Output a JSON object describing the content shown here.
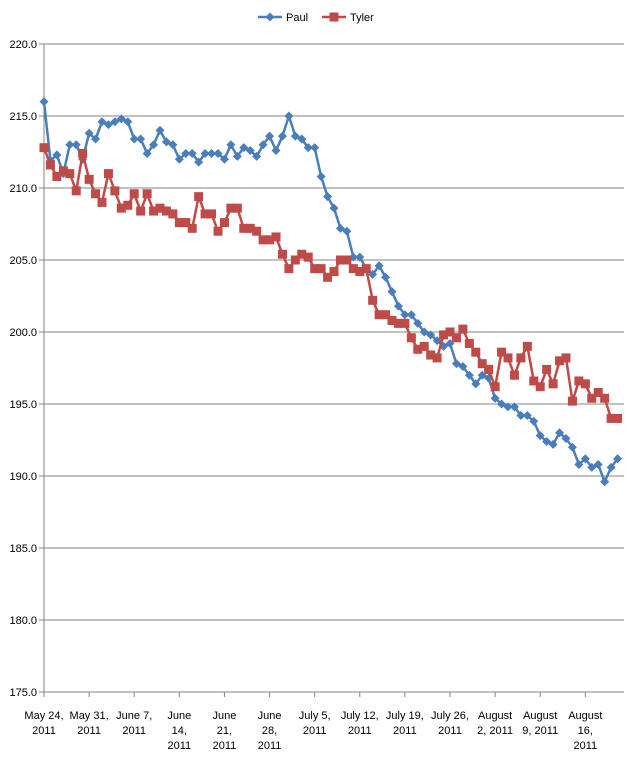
{
  "chart_data": {
    "type": "line",
    "title": "",
    "xlabel": "",
    "ylabel": "",
    "ylim": [
      175,
      220
    ],
    "y_ticks": [
      "175.0",
      "180.0",
      "185.0",
      "190.0",
      "195.0",
      "200.0",
      "205.0",
      "210.0",
      "215.0",
      "220.0"
    ],
    "x_range": [
      "2011-05-24",
      "2011-08-22"
    ],
    "x_ticks": [
      {
        "date": "2011-05-24",
        "label": [
          "May 24,",
          "2011"
        ]
      },
      {
        "date": "2011-05-31",
        "label": [
          "May 31,",
          "2011"
        ]
      },
      {
        "date": "2011-06-07",
        "label": [
          "June 7,",
          "2011"
        ]
      },
      {
        "date": "2011-06-14",
        "label": [
          "June",
          "14,",
          "2011"
        ]
      },
      {
        "date": "2011-06-21",
        "label": [
          "June",
          "21,",
          "2011"
        ]
      },
      {
        "date": "2011-06-28",
        "label": [
          "June",
          "28,",
          "2011"
        ]
      },
      {
        "date": "2011-07-05",
        "label": [
          "July 5,",
          "2011"
        ]
      },
      {
        "date": "2011-07-12",
        "label": [
          "July 12,",
          "2011"
        ]
      },
      {
        "date": "2011-07-19",
        "label": [
          "July 19,",
          "2011"
        ]
      },
      {
        "date": "2011-07-26",
        "label": [
          "July 26,",
          "2011"
        ]
      },
      {
        "date": "2011-08-02",
        "label": [
          "August",
          "2, 2011"
        ]
      },
      {
        "date": "2011-08-09",
        "label": [
          "August",
          "9, 2011"
        ]
      },
      {
        "date": "2011-08-16",
        "label": [
          "August",
          "16,",
          "2011"
        ]
      }
    ],
    "gridlines": "horizontal",
    "legend": "top-center",
    "series": [
      {
        "name": "Paul",
        "color": "#4a7ebb",
        "marker": "diamond",
        "points": [
          [
            "2011-05-24",
            216.0
          ],
          [
            "2011-05-25",
            211.9
          ],
          [
            "2011-05-26",
            212.3
          ],
          [
            "2011-05-27",
            211.0
          ],
          [
            "2011-05-28",
            213.0
          ],
          [
            "2011-05-29",
            213.0
          ],
          [
            "2011-05-30",
            212.0
          ],
          [
            "2011-05-31",
            213.8
          ],
          [
            "2011-06-01",
            213.4
          ],
          [
            "2011-06-02",
            214.6
          ],
          [
            "2011-06-03",
            214.4
          ],
          [
            "2011-06-04",
            214.6
          ],
          [
            "2011-06-05",
            214.8
          ],
          [
            "2011-06-06",
            214.6
          ],
          [
            "2011-06-07",
            213.4
          ],
          [
            "2011-06-08",
            213.4
          ],
          [
            "2011-06-09",
            212.4
          ],
          [
            "2011-06-10",
            213.0
          ],
          [
            "2011-06-11",
            214.0
          ],
          [
            "2011-06-12",
            213.2
          ],
          [
            "2011-06-13",
            213.0
          ],
          [
            "2011-06-14",
            212.0
          ],
          [
            "2011-06-15",
            212.4
          ],
          [
            "2011-06-16",
            212.4
          ],
          [
            "2011-06-17",
            211.8
          ],
          [
            "2011-06-18",
            212.4
          ],
          [
            "2011-06-19",
            212.4
          ],
          [
            "2011-06-20",
            212.4
          ],
          [
            "2011-06-21",
            212.0
          ],
          [
            "2011-06-22",
            213.0
          ],
          [
            "2011-06-23",
            212.2
          ],
          [
            "2011-06-24",
            212.8
          ],
          [
            "2011-06-25",
            212.6
          ],
          [
            "2011-06-26",
            212.2
          ],
          [
            "2011-06-27",
            213.0
          ],
          [
            "2011-06-28",
            213.6
          ],
          [
            "2011-06-29",
            212.6
          ],
          [
            "2011-06-30",
            213.6
          ],
          [
            "2011-07-01",
            215.0
          ],
          [
            "2011-07-02",
            213.6
          ],
          [
            "2011-07-03",
            213.4
          ],
          [
            "2011-07-04",
            212.8
          ],
          [
            "2011-07-05",
            212.8
          ],
          [
            "2011-07-06",
            210.8
          ],
          [
            "2011-07-07",
            209.4
          ],
          [
            "2011-07-08",
            208.6
          ],
          [
            "2011-07-09",
            207.2
          ],
          [
            "2011-07-10",
            207.0
          ],
          [
            "2011-07-11",
            205.2
          ],
          [
            "2011-07-12",
            205.2
          ],
          [
            "2011-07-13",
            204.4
          ],
          [
            "2011-07-14",
            204.0
          ],
          [
            "2011-07-15",
            204.6
          ],
          [
            "2011-07-16",
            203.8
          ],
          [
            "2011-07-17",
            202.8
          ],
          [
            "2011-07-18",
            201.8
          ],
          [
            "2011-07-19",
            201.2
          ],
          [
            "2011-07-20",
            201.2
          ],
          [
            "2011-07-21",
            200.6
          ],
          [
            "2011-07-22",
            200.0
          ],
          [
            "2011-07-23",
            199.8
          ],
          [
            "2011-07-24",
            199.4
          ],
          [
            "2011-07-25",
            199.0
          ],
          [
            "2011-07-26",
            199.2
          ],
          [
            "2011-07-27",
            197.8
          ],
          [
            "2011-07-28",
            197.6
          ],
          [
            "2011-07-29",
            197.0
          ],
          [
            "2011-07-30",
            196.4
          ],
          [
            "2011-07-31",
            197.0
          ],
          [
            "2011-08-01",
            196.8
          ],
          [
            "2011-08-02",
            195.4
          ],
          [
            "2011-08-03",
            195.0
          ],
          [
            "2011-08-04",
            194.8
          ],
          [
            "2011-08-05",
            194.8
          ],
          [
            "2011-08-06",
            194.2
          ],
          [
            "2011-08-07",
            194.2
          ],
          [
            "2011-08-08",
            193.8
          ],
          [
            "2011-08-09",
            192.8
          ],
          [
            "2011-08-10",
            192.4
          ],
          [
            "2011-08-11",
            192.2
          ],
          [
            "2011-08-12",
            193.0
          ],
          [
            "2011-08-13",
            192.6
          ],
          [
            "2011-08-14",
            192.0
          ],
          [
            "2011-08-15",
            190.8
          ],
          [
            "2011-08-16",
            191.2
          ],
          [
            "2011-08-17",
            190.6
          ],
          [
            "2011-08-18",
            190.8
          ],
          [
            "2011-08-19",
            189.6
          ],
          [
            "2011-08-20",
            190.6
          ],
          [
            "2011-08-21",
            191.2
          ]
        ]
      },
      {
        "name": "Tyler",
        "color": "#be4b48",
        "marker": "square",
        "points": [
          [
            "2011-05-24",
            212.8
          ],
          [
            "2011-05-25",
            211.6
          ],
          [
            "2011-05-26",
            210.8
          ],
          [
            "2011-05-27",
            211.2
          ],
          [
            "2011-05-28",
            211.0
          ],
          [
            "2011-05-29",
            209.8
          ],
          [
            "2011-05-30",
            212.4
          ],
          [
            "2011-05-31",
            210.6
          ],
          [
            "2011-06-01",
            209.6
          ],
          [
            "2011-06-02",
            209.0
          ],
          [
            "2011-06-03",
            211.0
          ],
          [
            "2011-06-04",
            209.8
          ],
          [
            "2011-06-05",
            208.6
          ],
          [
            "2011-06-06",
            208.8
          ],
          [
            "2011-06-07",
            209.6
          ],
          [
            "2011-06-08",
            208.4
          ],
          [
            "2011-06-09",
            209.6
          ],
          [
            "2011-06-10",
            208.4
          ],
          [
            "2011-06-11",
            208.6
          ],
          [
            "2011-06-12",
            208.4
          ],
          [
            "2011-06-13",
            208.2
          ],
          [
            "2011-06-14",
            207.6
          ],
          [
            "2011-06-15",
            207.6
          ],
          [
            "2011-06-16",
            207.2
          ],
          [
            "2011-06-17",
            209.4
          ],
          [
            "2011-06-18",
            208.2
          ],
          [
            "2011-06-19",
            208.2
          ],
          [
            "2011-06-20",
            207.0
          ],
          [
            "2011-06-21",
            207.6
          ],
          [
            "2011-06-22",
            208.6
          ],
          [
            "2011-06-23",
            208.6
          ],
          [
            "2011-06-24",
            207.2
          ],
          [
            "2011-06-25",
            207.2
          ],
          [
            "2011-06-26",
            207.0
          ],
          [
            "2011-06-27",
            206.4
          ],
          [
            "2011-06-28",
            206.4
          ],
          [
            "2011-06-29",
            206.6
          ],
          [
            "2011-06-30",
            205.4
          ],
          [
            "2011-07-01",
            204.4
          ],
          [
            "2011-07-02",
            205.0
          ],
          [
            "2011-07-03",
            205.4
          ],
          [
            "2011-07-04",
            205.2
          ],
          [
            "2011-07-05",
            204.4
          ],
          [
            "2011-07-06",
            204.4
          ],
          [
            "2011-07-07",
            203.8
          ],
          [
            "2011-07-08",
            204.2
          ],
          [
            "2011-07-09",
            205.0
          ],
          [
            "2011-07-10",
            205.0
          ],
          [
            "2011-07-11",
            204.4
          ],
          [
            "2011-07-12",
            204.2
          ],
          [
            "2011-07-13",
            204.4
          ],
          [
            "2011-07-14",
            202.2
          ],
          [
            "2011-07-15",
            201.2
          ],
          [
            "2011-07-16",
            201.2
          ],
          [
            "2011-07-17",
            200.8
          ],
          [
            "2011-07-18",
            200.6
          ],
          [
            "2011-07-19",
            200.6
          ],
          [
            "2011-07-20",
            199.6
          ],
          [
            "2011-07-21",
            198.8
          ],
          [
            "2011-07-22",
            199.0
          ],
          [
            "2011-07-23",
            198.4
          ],
          [
            "2011-07-24",
            198.2
          ],
          [
            "2011-07-25",
            199.8
          ],
          [
            "2011-07-26",
            200.0
          ],
          [
            "2011-07-27",
            199.6
          ],
          [
            "2011-07-28",
            200.2
          ],
          [
            "2011-07-29",
            199.2
          ],
          [
            "2011-07-30",
            198.6
          ],
          [
            "2011-07-31",
            197.8
          ],
          [
            "2011-08-01",
            197.4
          ],
          [
            "2011-08-02",
            196.2
          ],
          [
            "2011-08-03",
            198.6
          ],
          [
            "2011-08-04",
            198.2
          ],
          [
            "2011-08-05",
            197.0
          ],
          [
            "2011-08-06",
            198.2
          ],
          [
            "2011-08-07",
            199.0
          ],
          [
            "2011-08-08",
            196.6
          ],
          [
            "2011-08-09",
            196.2
          ],
          [
            "2011-08-10",
            197.4
          ],
          [
            "2011-08-11",
            196.4
          ],
          [
            "2011-08-12",
            198.0
          ],
          [
            "2011-08-13",
            198.2
          ],
          [
            "2011-08-14",
            195.2
          ],
          [
            "2011-08-15",
            196.6
          ],
          [
            "2011-08-16",
            196.4
          ],
          [
            "2011-08-17",
            195.4
          ],
          [
            "2011-08-18",
            195.8
          ],
          [
            "2011-08-19",
            195.4
          ],
          [
            "2011-08-20",
            194.0
          ],
          [
            "2011-08-21",
            194.0
          ]
        ]
      }
    ]
  }
}
